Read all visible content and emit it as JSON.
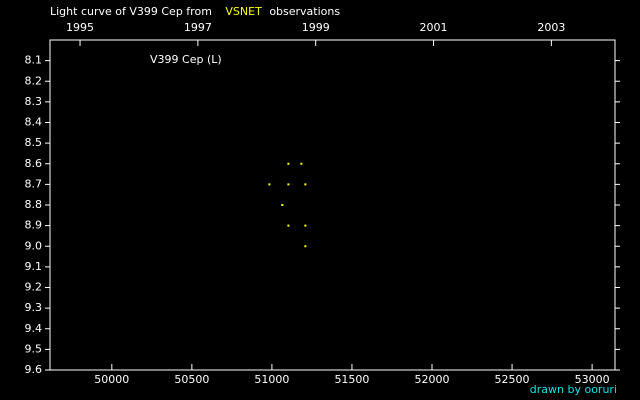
{
  "chart_data": {
    "type": "scatter",
    "title_parts": [
      {
        "text": "Light curve of V399 Cep from",
        "color": "#ffffff"
      },
      {
        "text": "VSNET",
        "color": "#ffff00"
      },
      {
        "text": "observations",
        "color": "#ffffff"
      }
    ],
    "annotation": "V399 Cep (L)",
    "credit": "drawn by ooruri",
    "credit_color": "#00e5e5",
    "background": "#000000",
    "axis_color": "#ffffff",
    "series": [
      {
        "color": "#ffff00",
        "x": [
          50984,
          51065,
          51103,
          51103,
          51103,
          51184,
          51209,
          51209,
          51209
        ],
        "values": [
          8.7,
          8.8,
          8.6,
          8.7,
          8.9,
          8.6,
          8.7,
          8.9,
          9.0
        ]
      }
    ],
    "xlim": [
      49614,
      53143
    ],
    "xticks": [
      50000,
      50500,
      51000,
      51500,
      52000,
      52500,
      53000
    ],
    "x2lim": [
      1994.49,
      2004.08
    ],
    "x2ticks": [
      1995,
      1997,
      1999,
      2001,
      2003
    ],
    "ylim": [
      8.0,
      9.6
    ],
    "y_inverted": true,
    "yticks": [
      8.1,
      8.2,
      8.3,
      8.4,
      8.5,
      8.6,
      8.7,
      8.8,
      8.9,
      {
        "value": 9.0,
        "label": "9.0"
      },
      9.1,
      9.2,
      9.3,
      9.4,
      9.5,
      9.6
    ]
  }
}
